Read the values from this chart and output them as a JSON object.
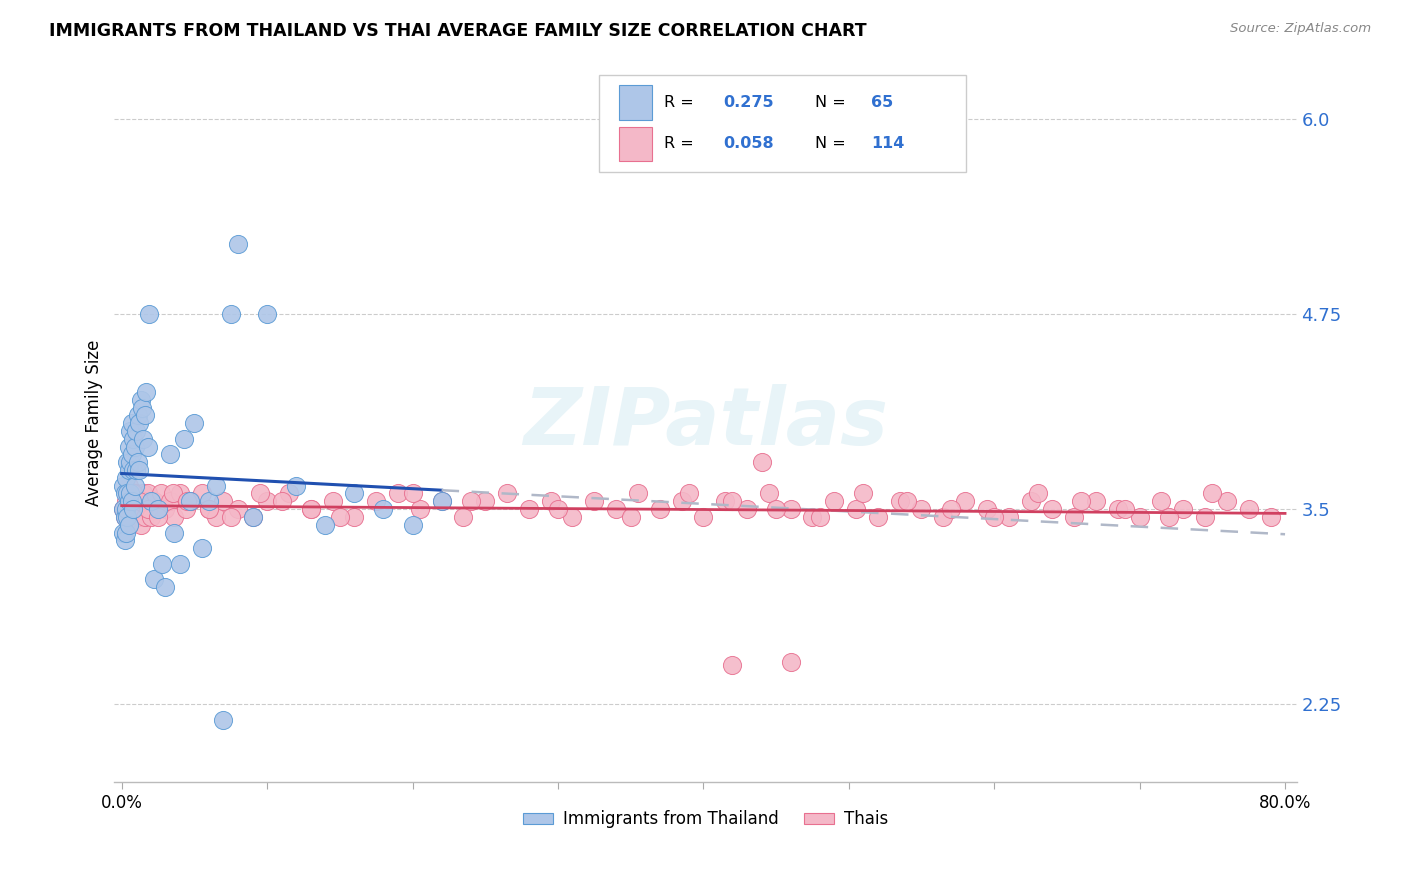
{
  "title": "IMMIGRANTS FROM THAILAND VS THAI AVERAGE FAMILY SIZE CORRELATION CHART",
  "source": "Source: ZipAtlas.com",
  "ylabel": "Average Family Size",
  "xlim": [
    -0.005,
    0.808
  ],
  "ylim": [
    1.75,
    6.35
  ],
  "yticks": [
    2.25,
    3.5,
    4.75,
    6.0
  ],
  "xticks": [
    0.0,
    0.1,
    0.2,
    0.3,
    0.4,
    0.5,
    0.6,
    0.7,
    0.8
  ],
  "xticklabels": [
    "0.0%",
    "",
    "",
    "",
    "",
    "",
    "",
    "",
    "80.0%"
  ],
  "legend_label1": "Immigrants from Thailand",
  "legend_label2": "Thais",
  "blue_face": "#aec6e8",
  "blue_edge": "#5b9bd5",
  "pink_face": "#f4b8c8",
  "pink_edge": "#e87090",
  "trend_blue": "#2050b0",
  "trend_pink": "#d04060",
  "trend_dash": "#b0b8c8",
  "watermark": "ZIPatlas",
  "blue_x": [
    0.001,
    0.001,
    0.001,
    0.002,
    0.002,
    0.002,
    0.003,
    0.003,
    0.003,
    0.004,
    0.004,
    0.004,
    0.005,
    0.005,
    0.005,
    0.005,
    0.006,
    0.006,
    0.006,
    0.007,
    0.007,
    0.007,
    0.008,
    0.008,
    0.008,
    0.009,
    0.009,
    0.01,
    0.01,
    0.011,
    0.011,
    0.012,
    0.012,
    0.013,
    0.014,
    0.015,
    0.016,
    0.017,
    0.018,
    0.019,
    0.02,
    0.022,
    0.025,
    0.028,
    0.03,
    0.033,
    0.036,
    0.04,
    0.043,
    0.047,
    0.05,
    0.055,
    0.06,
    0.065,
    0.07,
    0.075,
    0.08,
    0.09,
    0.1,
    0.12,
    0.14,
    0.16,
    0.18,
    0.2,
    0.22
  ],
  "blue_y": [
    3.5,
    3.65,
    3.35,
    3.6,
    3.45,
    3.3,
    3.7,
    3.5,
    3.35,
    3.8,
    3.6,
    3.45,
    3.9,
    3.75,
    3.55,
    3.4,
    4.0,
    3.8,
    3.6,
    4.05,
    3.85,
    3.55,
    3.95,
    3.75,
    3.5,
    3.9,
    3.65,
    4.0,
    3.75,
    4.1,
    3.8,
    4.05,
    3.75,
    4.2,
    4.15,
    3.95,
    4.1,
    4.25,
    3.9,
    4.75,
    3.55,
    3.05,
    3.5,
    3.15,
    3.0,
    3.85,
    3.35,
    3.15,
    3.95,
    3.55,
    4.05,
    3.25,
    3.55,
    3.65,
    2.15,
    4.75,
    5.2,
    3.45,
    4.75,
    3.65,
    3.4,
    3.6,
    3.5,
    3.4,
    3.55
  ],
  "pink_x": [
    0.001,
    0.002,
    0.003,
    0.004,
    0.005,
    0.005,
    0.006,
    0.007,
    0.008,
    0.009,
    0.01,
    0.011,
    0.012,
    0.013,
    0.014,
    0.015,
    0.016,
    0.017,
    0.018,
    0.019,
    0.02,
    0.022,
    0.025,
    0.027,
    0.03,
    0.033,
    0.036,
    0.04,
    0.044,
    0.048,
    0.055,
    0.06,
    0.065,
    0.07,
    0.08,
    0.09,
    0.1,
    0.115,
    0.13,
    0.145,
    0.16,
    0.175,
    0.19,
    0.205,
    0.22,
    0.235,
    0.25,
    0.265,
    0.28,
    0.295,
    0.31,
    0.325,
    0.34,
    0.355,
    0.37,
    0.385,
    0.4,
    0.415,
    0.43,
    0.445,
    0.46,
    0.475,
    0.49,
    0.505,
    0.52,
    0.535,
    0.55,
    0.565,
    0.58,
    0.595,
    0.61,
    0.625,
    0.64,
    0.655,
    0.67,
    0.685,
    0.7,
    0.715,
    0.73,
    0.745,
    0.76,
    0.775,
    0.79,
    0.008,
    0.012,
    0.018,
    0.025,
    0.035,
    0.045,
    0.06,
    0.075,
    0.095,
    0.11,
    0.13,
    0.15,
    0.2,
    0.24,
    0.3,
    0.35,
    0.39,
    0.42,
    0.45,
    0.48,
    0.51,
    0.54,
    0.57,
    0.6,
    0.63,
    0.66,
    0.69,
    0.72,
    0.75,
    0.44,
    0.46,
    0.42
  ],
  "pink_y": [
    3.5,
    3.45,
    3.55,
    3.5,
    3.65,
    3.4,
    3.55,
    3.6,
    3.45,
    3.55,
    3.6,
    3.5,
    3.45,
    3.4,
    3.55,
    3.6,
    3.45,
    3.55,
    3.6,
    3.5,
    3.45,
    3.55,
    3.5,
    3.6,
    3.5,
    3.55,
    3.45,
    3.6,
    3.5,
    3.55,
    3.6,
    3.5,
    3.45,
    3.55,
    3.5,
    3.45,
    3.55,
    3.6,
    3.5,
    3.55,
    3.45,
    3.55,
    3.6,
    3.5,
    3.55,
    3.45,
    3.55,
    3.6,
    3.5,
    3.55,
    3.45,
    3.55,
    3.5,
    3.6,
    3.5,
    3.55,
    3.45,
    3.55,
    3.5,
    3.6,
    3.5,
    3.45,
    3.55,
    3.5,
    3.45,
    3.55,
    3.5,
    3.45,
    3.55,
    3.5,
    3.45,
    3.55,
    3.5,
    3.45,
    3.55,
    3.5,
    3.45,
    3.55,
    3.5,
    3.45,
    3.55,
    3.5,
    3.45,
    3.6,
    3.55,
    3.5,
    3.45,
    3.6,
    3.55,
    3.5,
    3.45,
    3.6,
    3.55,
    3.5,
    3.45,
    3.6,
    3.55,
    3.5,
    3.45,
    3.6,
    3.55,
    3.5,
    3.45,
    3.6,
    3.55,
    3.5,
    3.45,
    3.6,
    3.55,
    3.5,
    3.45,
    3.6,
    3.8,
    2.52,
    2.5
  ]
}
